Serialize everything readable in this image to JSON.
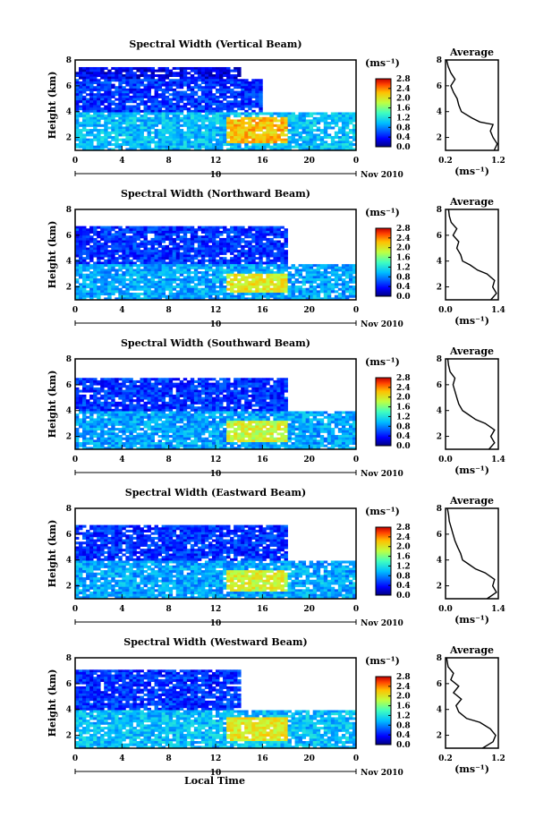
{
  "x_axis_label": "Local Time",
  "date_label": "Nov 2010",
  "day_label": "10",
  "avg_title": "Average",
  "height_label": "Height (km)",
  "unit_label": "(ms⁻¹)",
  "x_ticks": [
    "0",
    "4",
    "8",
    "12",
    "16",
    "20",
    "0"
  ],
  "y_ticks": [
    "2",
    "4",
    "6",
    "8"
  ],
  "avg_y_ticks": [
    "2",
    "4",
    "6",
    "8"
  ],
  "panels": [
    {
      "title": "Spectral Width (Vertical Beam)",
      "colorbar_ticks": [
        "0.0",
        "0.4",
        "0.8",
        "1.2",
        "1.6",
        "2.0",
        "2.4",
        "2.8"
      ],
      "avg_xticks": [
        "0.2",
        "1.2"
      ],
      "avg_xlim": [
        0.2,
        1.2
      ]
    },
    {
      "title": "Spectral Width (Northward Beam)",
      "colorbar_ticks": [
        "0.0",
        "0.4",
        "0.8",
        "1.2",
        "1.6",
        "2.0",
        "2.4",
        "2.8"
      ],
      "avg_xticks": [
        "0.0",
        "1.4"
      ],
      "avg_xlim": [
        0.0,
        1.4
      ]
    },
    {
      "title": "Spectral Width (Southward Beam)",
      "colorbar_ticks": [
        "0.0",
        "0.4",
        "0.8",
        "1.2",
        "1.6",
        "2.0",
        "2.4",
        "2.8"
      ],
      "avg_xticks": [
        "0.0",
        "1.4"
      ],
      "avg_xlim": [
        0.0,
        1.4
      ]
    },
    {
      "title": "Spectral Width (Eastward Beam)",
      "colorbar_ticks": [
        "0.0",
        "0.4",
        "0.8",
        "1.2",
        "1.6",
        "2.0",
        "2.4",
        "2.8"
      ],
      "avg_xticks": [
        "0.0",
        "1.4"
      ],
      "avg_xlim": [
        0.0,
        1.4
      ]
    },
    {
      "title": "Spectral Width (Westward Beam)",
      "colorbar_ticks": [
        "0.0",
        "0.4",
        "0.8",
        "1.2",
        "1.6",
        "2.0",
        "2.4",
        "2.8"
      ],
      "avg_xticks": [
        "0.2",
        "1.2"
      ],
      "avg_xlim": [
        0.2,
        1.2
      ]
    }
  ],
  "chart_data": [
    {
      "type": "heatmap",
      "title": "Spectral Width (Vertical Beam)",
      "ylabel": "Height (km)",
      "xlim": [
        0,
        24
      ],
      "ylim": [
        1,
        8
      ],
      "colorbar_range": [
        0.0,
        2.8
      ],
      "layers": [
        {
          "h": [
            1.0,
            4.0
          ],
          "t": [
            0,
            24
          ],
          "level": 1.0
        },
        {
          "h": [
            4.0,
            6.6
          ],
          "t": [
            0,
            16
          ],
          "level": 0.5
        },
        {
          "h": [
            6.6,
            7.4
          ],
          "t": [
            0,
            14
          ],
          "level": 0.3
        },
        {
          "h": [
            1.5,
            3.5
          ],
          "t": [
            13,
            18
          ],
          "level": 2.2
        }
      ]
    },
    {
      "type": "line",
      "title": "Average",
      "x_unit": "ms⁻¹",
      "xlim": [
        0.2,
        1.2
      ],
      "ylim": [
        1,
        8
      ],
      "points": [
        [
          1.12,
          1.0
        ],
        [
          1.18,
          1.5
        ],
        [
          1.1,
          2.0
        ],
        [
          1.05,
          2.5
        ],
        [
          1.1,
          3.0
        ],
        [
          0.85,
          3.2
        ],
        [
          0.7,
          3.5
        ],
        [
          0.5,
          4.0
        ],
        [
          0.45,
          4.5
        ],
        [
          0.42,
          5.0
        ],
        [
          0.35,
          5.5
        ],
        [
          0.3,
          6.0
        ],
        [
          0.38,
          6.5
        ],
        [
          0.3,
          7.0
        ],
        [
          0.25,
          7.5
        ],
        [
          0.22,
          8.0
        ]
      ]
    },
    {
      "type": "heatmap",
      "title": "Spectral Width (Northward Beam)",
      "ylabel": "Height (km)",
      "xlim": [
        0,
        24
      ],
      "ylim": [
        1,
        8
      ],
      "colorbar_range": [
        0.0,
        2.8
      ],
      "layers": [
        {
          "h": [
            1.0,
            3.8
          ],
          "t": [
            0,
            24
          ],
          "level": 0.9
        },
        {
          "h": [
            3.8,
            6.8
          ],
          "t": [
            0,
            18
          ],
          "level": 0.5
        },
        {
          "h": [
            1.5,
            3.0
          ],
          "t": [
            13,
            18
          ],
          "level": 2.0
        }
      ]
    },
    {
      "type": "line",
      "title": "Average",
      "x_unit": "ms⁻¹",
      "xlim": [
        0.0,
        1.4
      ],
      "ylim": [
        1,
        8
      ],
      "points": [
        [
          1.2,
          1.0
        ],
        [
          1.35,
          1.5
        ],
        [
          1.25,
          2.0
        ],
        [
          1.3,
          2.5
        ],
        [
          1.1,
          3.0
        ],
        [
          0.85,
          3.3
        ],
        [
          0.65,
          3.7
        ],
        [
          0.45,
          4.0
        ],
        [
          0.4,
          4.5
        ],
        [
          0.3,
          5.0
        ],
        [
          0.35,
          5.5
        ],
        [
          0.2,
          6.0
        ],
        [
          0.3,
          6.5
        ],
        [
          0.15,
          7.0
        ],
        [
          0.1,
          7.5
        ],
        [
          0.08,
          8.0
        ]
      ]
    },
    {
      "type": "heatmap",
      "title": "Spectral Width (Southward Beam)",
      "ylabel": "Height (km)",
      "xlim": [
        0,
        24
      ],
      "ylim": [
        1,
        8
      ],
      "colorbar_range": [
        0.0,
        2.8
      ],
      "layers": [
        {
          "h": [
            1.0,
            4.0
          ],
          "t": [
            0,
            24
          ],
          "level": 0.9
        },
        {
          "h": [
            4.0,
            6.6
          ],
          "t": [
            0,
            18
          ],
          "level": 0.5
        },
        {
          "h": [
            1.5,
            3.2
          ],
          "t": [
            13,
            18
          ],
          "level": 1.9
        }
      ]
    },
    {
      "type": "line",
      "title": "Average",
      "x_unit": "ms⁻¹",
      "xlim": [
        0.0,
        1.4
      ],
      "ylim": [
        1,
        8
      ],
      "points": [
        [
          1.15,
          1.0
        ],
        [
          1.3,
          1.5
        ],
        [
          1.2,
          2.0
        ],
        [
          1.3,
          2.5
        ],
        [
          1.05,
          3.0
        ],
        [
          0.8,
          3.3
        ],
        [
          0.6,
          3.7
        ],
        [
          0.45,
          4.0
        ],
        [
          0.35,
          4.5
        ],
        [
          0.3,
          5.0
        ],
        [
          0.25,
          5.5
        ],
        [
          0.2,
          6.0
        ],
        [
          0.25,
          6.5
        ],
        [
          0.12,
          7.0
        ],
        [
          0.08,
          7.5
        ],
        [
          0.06,
          8.0
        ]
      ]
    },
    {
      "type": "heatmap",
      "title": "Spectral Width (Eastward Beam)",
      "ylabel": "Height (km)",
      "xlim": [
        0,
        24
      ],
      "ylim": [
        1,
        8
      ],
      "colorbar_range": [
        0.0,
        2.8
      ],
      "layers": [
        {
          "h": [
            1.0,
            4.0
          ],
          "t": [
            0,
            24
          ],
          "level": 0.9
        },
        {
          "h": [
            4.0,
            6.8
          ],
          "t": [
            0,
            18
          ],
          "level": 0.5
        },
        {
          "h": [
            1.5,
            3.2
          ],
          "t": [
            13,
            18
          ],
          "level": 1.9
        }
      ]
    },
    {
      "type": "line",
      "title": "Average",
      "x_unit": "ms⁻¹",
      "xlim": [
        0.0,
        1.4
      ],
      "ylim": [
        1,
        8
      ],
      "points": [
        [
          1.1,
          1.0
        ],
        [
          1.35,
          1.5
        ],
        [
          1.25,
          2.0
        ],
        [
          1.3,
          2.5
        ],
        [
          1.05,
          3.0
        ],
        [
          0.8,
          3.3
        ],
        [
          0.6,
          3.7
        ],
        [
          0.45,
          4.0
        ],
        [
          0.4,
          4.5
        ],
        [
          0.32,
          5.0
        ],
        [
          0.25,
          5.5
        ],
        [
          0.2,
          6.0
        ],
        [
          0.15,
          6.5
        ],
        [
          0.1,
          7.0
        ],
        [
          0.08,
          7.5
        ],
        [
          0.05,
          8.0
        ]
      ]
    },
    {
      "type": "heatmap",
      "title": "Spectral Width (Westward Beam)",
      "ylabel": "Height (km)",
      "xlim": [
        0,
        24
      ],
      "ylim": [
        1,
        8
      ],
      "colorbar_range": [
        0.0,
        2.8
      ],
      "layers": [
        {
          "h": [
            1.0,
            4.0
          ],
          "t": [
            0,
            24
          ],
          "level": 1.0
        },
        {
          "h": [
            4.0,
            7.0
          ],
          "t": [
            0,
            14
          ],
          "level": 0.5
        },
        {
          "h": [
            1.5,
            3.4
          ],
          "t": [
            13,
            18
          ],
          "level": 2.0
        }
      ]
    },
    {
      "type": "line",
      "title": "Average",
      "x_unit": "ms⁻¹",
      "xlim": [
        0.2,
        1.2
      ],
      "ylim": [
        1,
        8
      ],
      "points": [
        [
          0.9,
          1.0
        ],
        [
          1.1,
          1.5
        ],
        [
          1.15,
          2.0
        ],
        [
          1.05,
          2.5
        ],
        [
          0.85,
          3.0
        ],
        [
          0.6,
          3.3
        ],
        [
          0.45,
          3.8
        ],
        [
          0.4,
          4.3
        ],
        [
          0.5,
          4.8
        ],
        [
          0.35,
          5.3
        ],
        [
          0.45,
          5.8
        ],
        [
          0.3,
          6.3
        ],
        [
          0.35,
          6.8
        ],
        [
          0.25,
          7.3
        ],
        [
          0.22,
          8.0
        ]
      ]
    }
  ]
}
